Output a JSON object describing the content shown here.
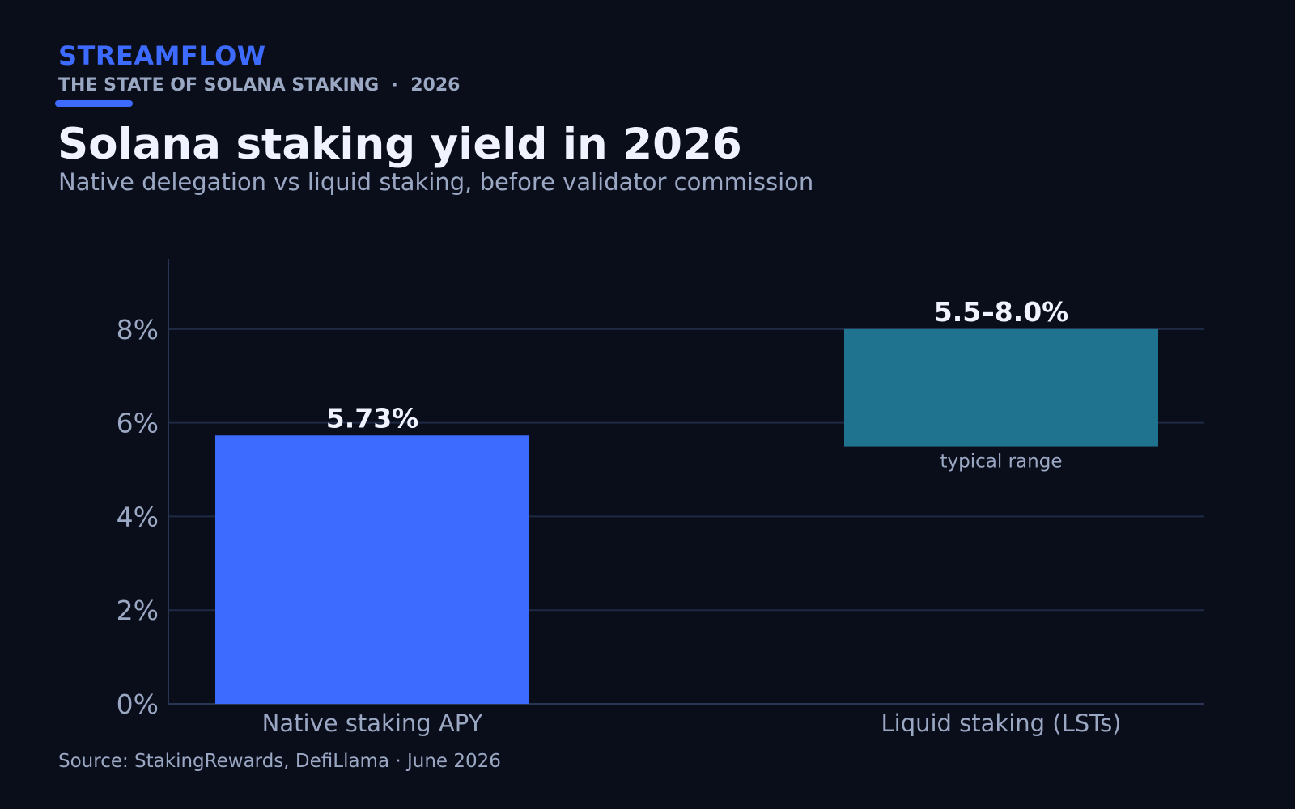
{
  "header": {
    "brand": "STREAMFLOW",
    "kicker": "THE STATE OF SOLANA STAKING  ·  2026",
    "title": "Solana staking yield in 2026",
    "subtitle": "Native delegation vs liquid staking, before validator commission"
  },
  "footer": {
    "source": "Source: StakingRewards, DefiLlama · June 2026"
  },
  "colors": {
    "background": "#0a0d1a",
    "accent": "#3d6aff",
    "range_bar": "#20738f",
    "grid": "#1f2a44",
    "text_muted": "#9ba8c4",
    "text_bright": "#f0f3ff"
  },
  "chart_data": {
    "type": "bar",
    "categories": [
      "Native staking APY",
      "Liquid staking (LSTs)"
    ],
    "bars": [
      {
        "category": "Native staking APY",
        "low": 0,
        "high": 5.73,
        "label": "5.73%",
        "color": "#3d6aff",
        "note": ""
      },
      {
        "category": "Liquid staking (LSTs)",
        "low": 5.5,
        "high": 8.0,
        "label": "5.5–8.0%",
        "color": "#20738f",
        "note": "typical range"
      }
    ],
    "yticks": [
      0,
      2,
      4,
      6,
      8
    ],
    "ytick_labels": [
      "0%",
      "2%",
      "4%",
      "6%",
      "8%"
    ],
    "ylim": [
      0,
      9.5
    ],
    "grid": true,
    "xlabel": "",
    "ylabel": ""
  }
}
